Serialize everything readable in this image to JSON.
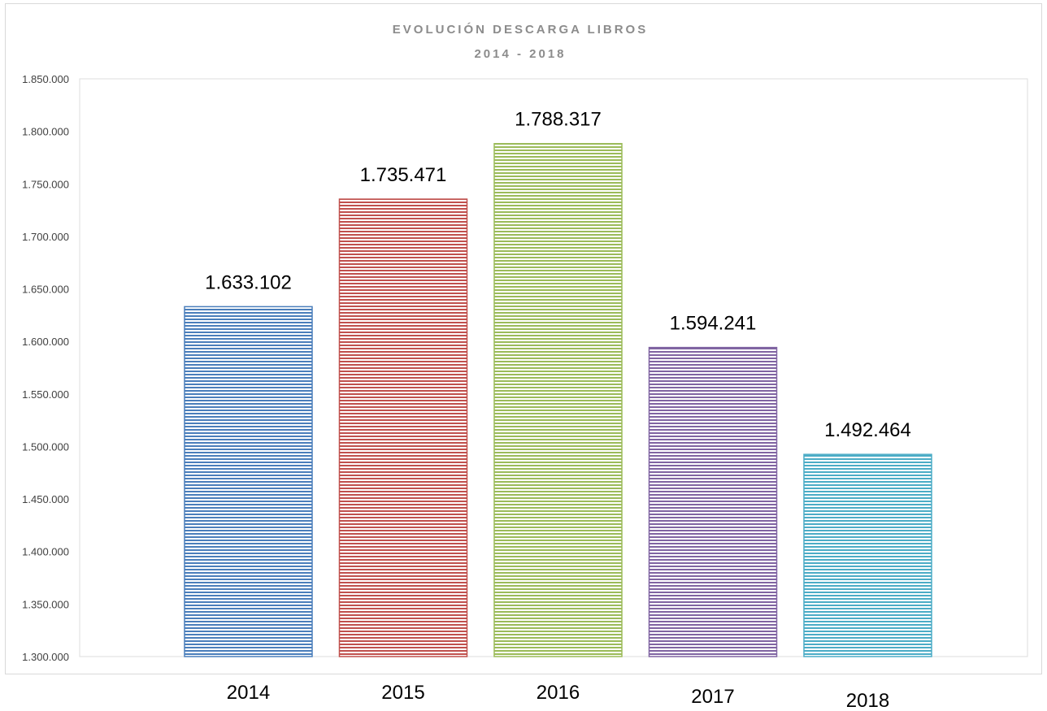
{
  "chart_data": {
    "type": "bar",
    "title": "EVOLUCIÓN DESCARGA LIBROS",
    "subtitle": "2014 - 2018",
    "xlabel": "",
    "ylabel": "",
    "categories": [
      "2014",
      "2015",
      "2016",
      "2017",
      "2018"
    ],
    "values": [
      1633102,
      1735471,
      1788317,
      1594241,
      1492464
    ],
    "data_labels": [
      "1.633.102",
      "1.735.471",
      "1.788.317",
      "1.594.241",
      "1.492.464"
    ],
    "ylim": [
      1300000,
      1850000
    ],
    "y_ticks": [
      {
        "value": 1300000,
        "label": "1.300.000"
      },
      {
        "value": 1350000,
        "label": "1.350.000"
      },
      {
        "value": 1400000,
        "label": "1.400.000"
      },
      {
        "value": 1450000,
        "label": "1.450.000"
      },
      {
        "value": 1500000,
        "label": "1.500.000"
      },
      {
        "value": 1550000,
        "label": "1.550.000"
      },
      {
        "value": 1600000,
        "label": "1.600.000"
      },
      {
        "value": 1650000,
        "label": "1.650.000"
      },
      {
        "value": 1700000,
        "label": "1.700.000"
      },
      {
        "value": 1750000,
        "label": "1.750.000"
      },
      {
        "value": 1800000,
        "label": "1.800.000"
      },
      {
        "value": 1850000,
        "label": "1.850.000"
      }
    ],
    "colors": [
      "#4a7ebb",
      "#c0504d",
      "#9bbb59",
      "#8064a2",
      "#4bacc6"
    ],
    "grid": false,
    "legend": "none"
  }
}
